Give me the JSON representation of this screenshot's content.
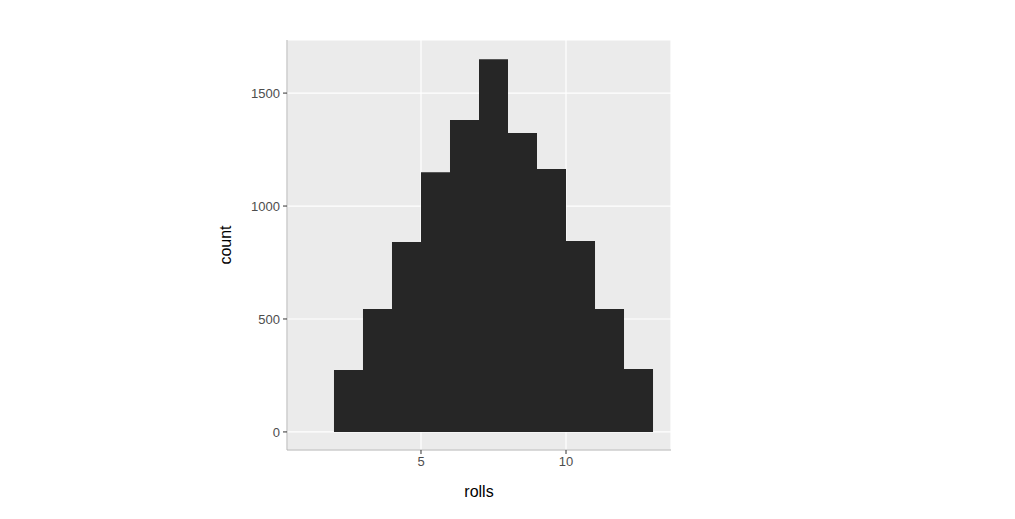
{
  "chart_data": {
    "type": "histogram",
    "x_label": "rolls",
    "y_label": "count",
    "bins": [
      2,
      3,
      4,
      5,
      6,
      7,
      8,
      9,
      10,
      11,
      12,
      13
    ],
    "values": [
      274,
      544,
      841,
      1150,
      1381,
      1650,
      1323,
      1164,
      845,
      544,
      279
    ],
    "color": "#262626",
    "xlim": [
      0.38,
      13.62
    ],
    "ylim": [
      -80,
      1735
    ],
    "xticks": [
      5,
      10
    ],
    "yticks": [
      0,
      500,
      1000,
      1500
    ],
    "grid": true
  }
}
